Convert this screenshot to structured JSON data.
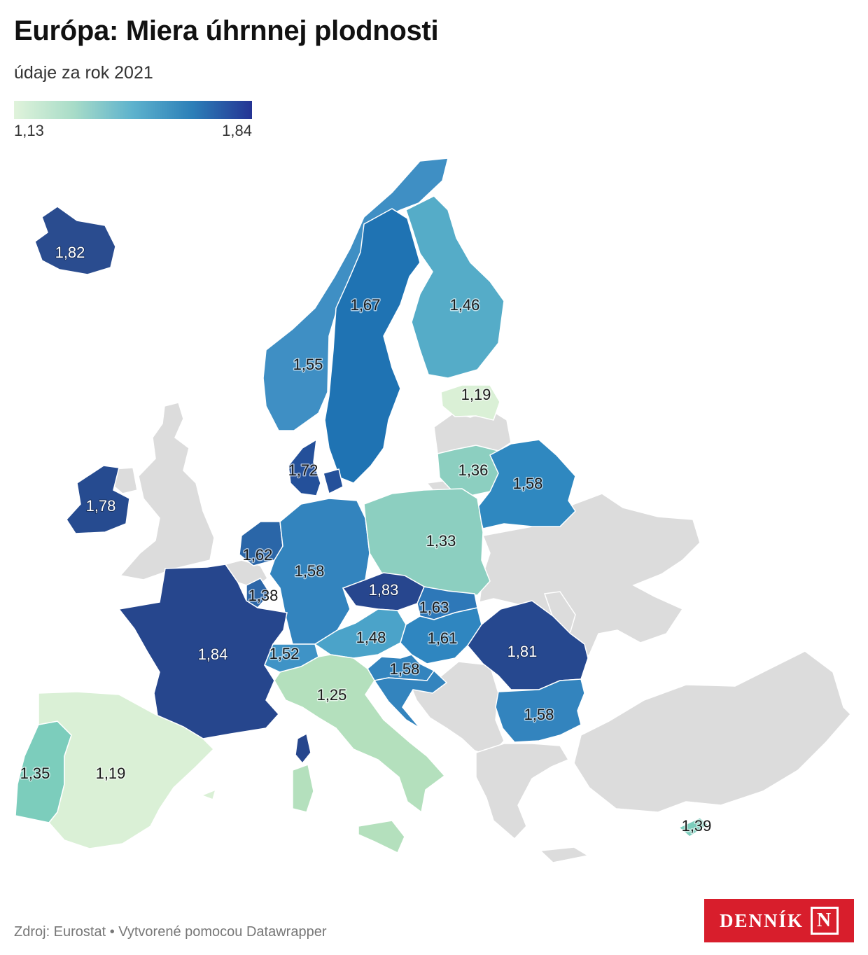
{
  "title": "Európa: Miera úhrnnej plodnosti",
  "subtitle": "údaje za rok 2021",
  "legend": {
    "min": "1,13",
    "max": "1,84"
  },
  "footer": "Zdroj: Eurostat • Vytvorené pomocou Datawrapper",
  "logo": {
    "text": "DENNÍK",
    "mark": "N"
  },
  "colors": {
    "no_data": "#dcdcdc",
    "scale": [
      "#e0f3db",
      "#a8dcc8",
      "#5db2cd",
      "#2c7fb8",
      "#253494"
    ]
  },
  "countries": [
    {
      "id": "iceland",
      "value": 1.82,
      "label": "1,82"
    },
    {
      "id": "norway",
      "value": 1.55,
      "label": "1,55"
    },
    {
      "id": "sweden",
      "value": 1.67,
      "label": "1,67"
    },
    {
      "id": "finland",
      "value": 1.46,
      "label": "1,46"
    },
    {
      "id": "estonia",
      "value": 1.19,
      "label": "1,19"
    },
    {
      "id": "lithuania",
      "value": 1.36,
      "label": "1,36"
    },
    {
      "id": "belarus",
      "value": 1.58,
      "label": "1,58"
    },
    {
      "id": "denmark",
      "value": 1.72,
      "label": "1,72"
    },
    {
      "id": "ireland",
      "value": 1.78,
      "label": "1,78"
    },
    {
      "id": "netherlands",
      "value": 1.62,
      "label": "1,62"
    },
    {
      "id": "germany",
      "value": 1.58,
      "label": "1,58"
    },
    {
      "id": "poland",
      "value": 1.33,
      "label": "1,33"
    },
    {
      "id": "luxembourg",
      "value": 1.38,
      "label": "1,38"
    },
    {
      "id": "czechia",
      "value": 1.83,
      "label": "1,83"
    },
    {
      "id": "slovakia",
      "value": 1.63,
      "label": "1,63"
    },
    {
      "id": "france",
      "value": 1.84,
      "label": "1,84"
    },
    {
      "id": "austria",
      "value": 1.48,
      "label": "1,48"
    },
    {
      "id": "hungary",
      "value": 1.61,
      "label": "1,61"
    },
    {
      "id": "romania",
      "value": 1.81,
      "label": "1,81"
    },
    {
      "id": "switzerland",
      "value": 1.52,
      "label": "1,52"
    },
    {
      "id": "slovenia",
      "value": 1.58,
      "label": "1,58"
    },
    {
      "id": "italy",
      "value": 1.25,
      "label": "1,25"
    },
    {
      "id": "bulgaria",
      "value": 1.58,
      "label": "1,58"
    },
    {
      "id": "portugal",
      "value": 1.35,
      "label": "1,35"
    },
    {
      "id": "spain",
      "value": 1.19,
      "label": "1,19"
    },
    {
      "id": "cyprus",
      "value": 1.39,
      "label": "1,39"
    },
    {
      "id": "latvia",
      "value": null
    },
    {
      "id": "belgium",
      "value": null
    },
    {
      "id": "croatia",
      "value": null
    }
  ]
}
